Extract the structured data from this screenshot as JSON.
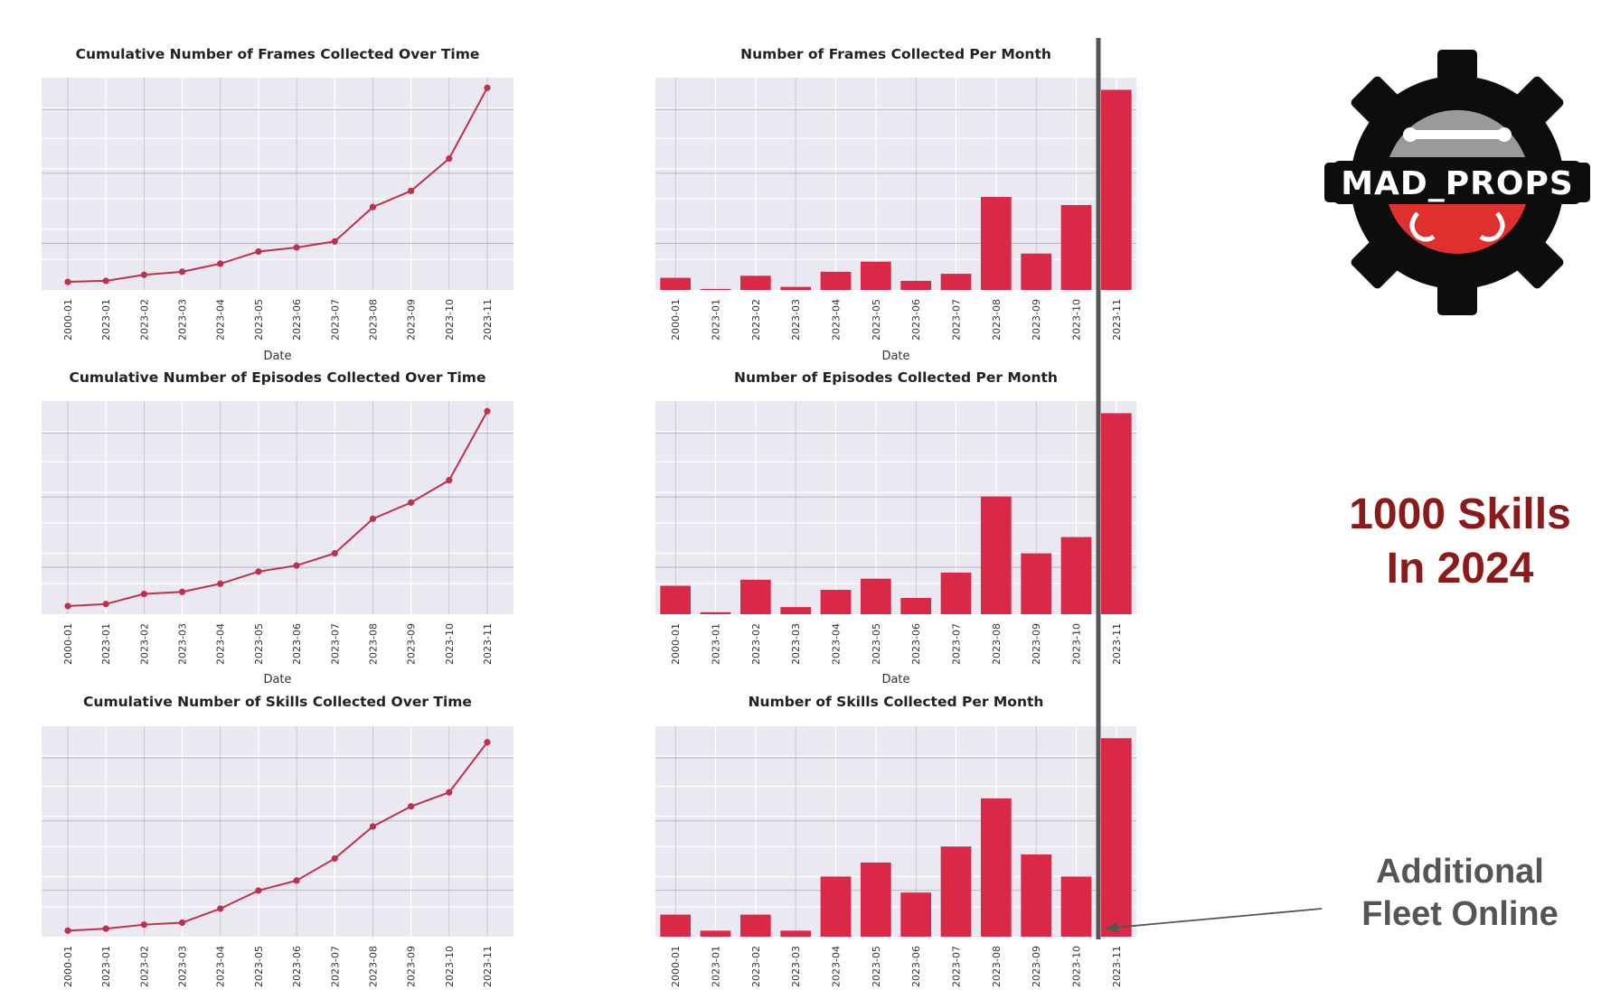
{
  "chart_data": [
    {
      "type": "line",
      "title": "Cumulative Number of Frames Collected Over Time",
      "xlabel": "Date",
      "ylabel": "",
      "categories": [
        "2000-01",
        "2023-01",
        "2023-02",
        "2023-03",
        "2023-04",
        "2023-05",
        "2023-06",
        "2023-07",
        "2023-08",
        "2023-09",
        "2023-10",
        "2023-11"
      ],
      "values": [
        4,
        4.5,
        7.5,
        9,
        13,
        19,
        21,
        24,
        41,
        49,
        65,
        100
      ],
      "ylim": [
        0,
        105
      ],
      "grid": true,
      "color": "#c0304d"
    },
    {
      "type": "bar",
      "title": "Number of Frames Collected Per Month",
      "xlabel": "Date",
      "ylabel": "",
      "categories": [
        "2000-01",
        "2023-01",
        "2023-02",
        "2023-03",
        "2023-04",
        "2023-05",
        "2023-06",
        "2023-07",
        "2023-08",
        "2023-09",
        "2023-10",
        "2023-11"
      ],
      "values": [
        6,
        0.5,
        7,
        1.5,
        9,
        14,
        4.5,
        8,
        46,
        18,
        42,
        99
      ],
      "ylim": [
        0,
        105
      ],
      "grid": true,
      "color": "#d92947"
    },
    {
      "type": "line",
      "title": "Cumulative Number of Episodes Collected Over Time",
      "xlabel": "Date",
      "ylabel": "",
      "categories": [
        "2000-01",
        "2023-01",
        "2023-02",
        "2023-03",
        "2023-04",
        "2023-05",
        "2023-06",
        "2023-07",
        "2023-08",
        "2023-09",
        "2023-10",
        "2023-11"
      ],
      "values": [
        4,
        5,
        10,
        11,
        15,
        21,
        24,
        30,
        47,
        55,
        66,
        100
      ],
      "ylim": [
        0,
        105
      ],
      "grid": true,
      "color": "#c0304d"
    },
    {
      "type": "bar",
      "title": "Number of Episodes Collected Per Month",
      "xlabel": "Date",
      "ylabel": "",
      "categories": [
        "2000-01",
        "2023-01",
        "2023-02",
        "2023-03",
        "2023-04",
        "2023-05",
        "2023-06",
        "2023-07",
        "2023-08",
        "2023-09",
        "2023-10",
        "2023-11"
      ],
      "values": [
        14,
        1,
        17,
        3.5,
        12,
        17.5,
        8,
        20.5,
        58,
        30,
        38,
        99
      ],
      "ylim": [
        0,
        105
      ],
      "grid": true,
      "color": "#d92947"
    },
    {
      "type": "line",
      "title": "Cumulative Number of Skills Collected Over Time",
      "xlabel": "",
      "ylabel": "",
      "categories": [
        "2000-01",
        "2023-01",
        "2023-02",
        "2023-03",
        "2023-04",
        "2023-05",
        "2023-06",
        "2023-07",
        "2023-08",
        "2023-09",
        "2023-10",
        "2023-11"
      ],
      "values": [
        3,
        4,
        6,
        7,
        14,
        23,
        28,
        39,
        55,
        65,
        72,
        97
      ],
      "ylim": [
        0,
        105
      ],
      "grid": true,
      "color": "#c0304d"
    },
    {
      "type": "bar",
      "title": "Number of Skills Collected Per Month",
      "xlabel": "",
      "ylabel": "",
      "categories": [
        "2000-01",
        "2023-01",
        "2023-02",
        "2023-03",
        "2023-04",
        "2023-05",
        "2023-06",
        "2023-07",
        "2023-08",
        "2023-09",
        "2023-10",
        "2023-11"
      ],
      "values": [
        11,
        3,
        11,
        3,
        30,
        37,
        22,
        45,
        69,
        41,
        30,
        99
      ],
      "ylim": [
        0,
        105
      ],
      "grid": true,
      "color": "#d92947"
    }
  ],
  "logo": {
    "text": "MAD_PROPS",
    "gear_color": "#0d0d0d",
    "top_color": "#9a9a9a",
    "bottom_color": "#e0302e"
  },
  "headline": {
    "line1": "1000 Skills",
    "line2": "In 2024",
    "color": "#8b1a1a"
  },
  "annotation": {
    "line1": "Additional",
    "line2": "Fleet Online",
    "color": "#555555"
  },
  "divider_color": "#555555"
}
